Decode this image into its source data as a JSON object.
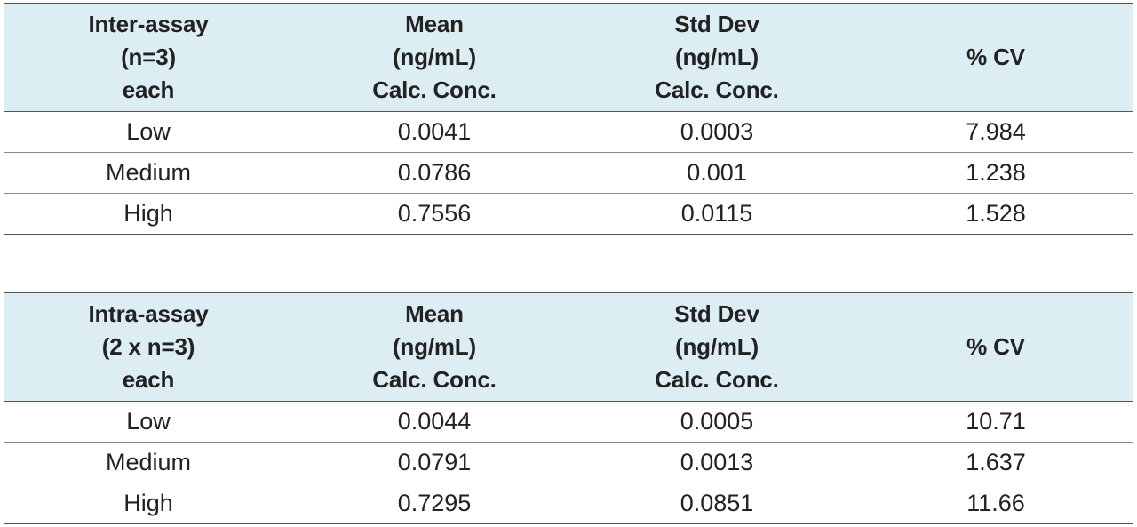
{
  "tables": [
    {
      "headers": [
        [
          "Inter-assay",
          "(n=3)",
          "each"
        ],
        [
          "Mean",
          "(ng/mL)",
          "Calc. Conc."
        ],
        [
          "Std Dev",
          "(ng/mL)",
          "Calc. Conc."
        ],
        [
          "% CV"
        ]
      ],
      "rows": [
        [
          "Low",
          "0.0041",
          "0.0003",
          "7.984"
        ],
        [
          "Medium",
          "0.0786",
          "0.001",
          "1.238"
        ],
        [
          "High",
          "0.7556",
          "0.0115",
          "1.528"
        ]
      ]
    },
    {
      "headers": [
        [
          "Intra-assay",
          "(2 x n=3)",
          "each"
        ],
        [
          "Mean",
          "(ng/mL)",
          "Calc. Conc."
        ],
        [
          "Std Dev",
          "(ng/mL)",
          "Calc. Conc."
        ],
        [
          "% CV"
        ]
      ],
      "rows": [
        [
          "Low",
          "0.0044",
          "0.0005",
          "10.71"
        ],
        [
          "Medium",
          "0.0791",
          "0.0013",
          "1.637"
        ],
        [
          "High",
          "0.7295",
          "0.0851",
          "11.66"
        ]
      ]
    }
  ],
  "colors": {
    "header_background": "#dcedf3",
    "text": "#222222",
    "rule": "#555555"
  }
}
